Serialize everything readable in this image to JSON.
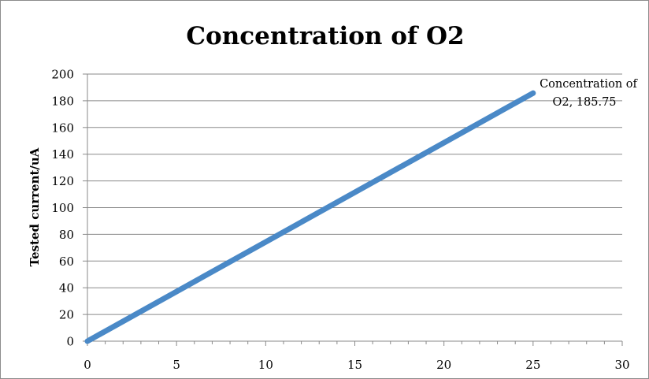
{
  "chart_data": {
    "type": "line",
    "title": "Concentration of O2",
    "xlabel": "",
    "ylabel": "Tested current/uA",
    "xlim": [
      0,
      30
    ],
    "ylim": [
      0,
      200
    ],
    "x_ticks": [
      0,
      5,
      10,
      15,
      20,
      25,
      30
    ],
    "y_ticks": [
      0,
      20,
      40,
      60,
      80,
      100,
      120,
      140,
      160,
      180,
      200
    ],
    "grid": "horizontal",
    "legend": "none",
    "series": [
      {
        "color": "#4a89c7",
        "points": [
          [
            0,
            0
          ],
          [
            25,
            185.75
          ]
        ]
      }
    ],
    "data_label": {
      "line1": "Concentration of",
      "line2": "O2, 185.75"
    }
  }
}
